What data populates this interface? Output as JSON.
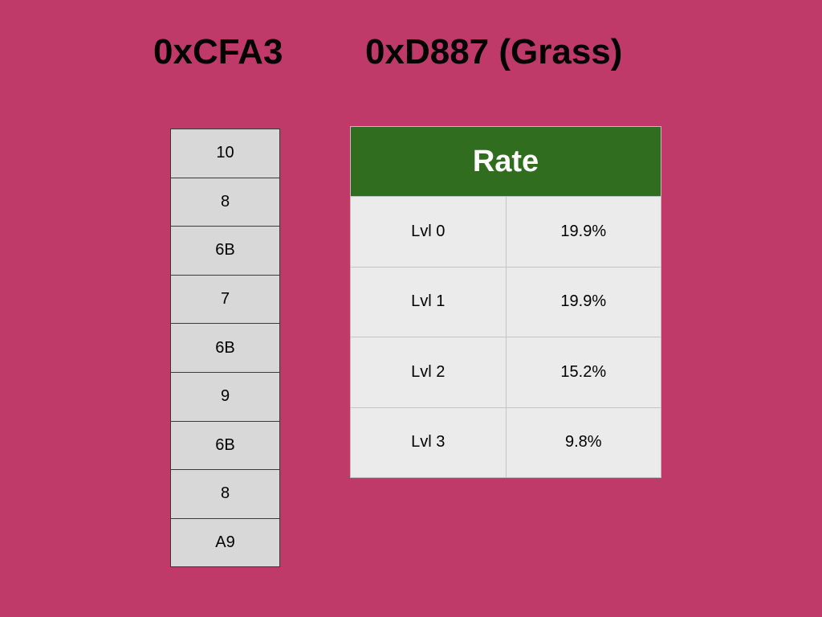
{
  "colors": {
    "background": "#bf3a69",
    "header_green": "#316d1f",
    "cell_gray": "#d8d8d8",
    "table_gray": "#ebebeb"
  },
  "titles": {
    "left": "0xCFA3",
    "right": "0xD887 (Grass)"
  },
  "stack": [
    "10",
    "8",
    "6B",
    "7",
    "6B",
    "9",
    "6B",
    "8",
    "A9"
  ],
  "rate_table": {
    "header": "Rate",
    "rows": [
      {
        "level": "Lvl 0",
        "rate": "19.9%"
      },
      {
        "level": "Lvl 1",
        "rate": "19.9%"
      },
      {
        "level": "Lvl 2",
        "rate": "15.2%"
      },
      {
        "level": "Lvl 3",
        "rate": "9.8%"
      }
    ]
  }
}
